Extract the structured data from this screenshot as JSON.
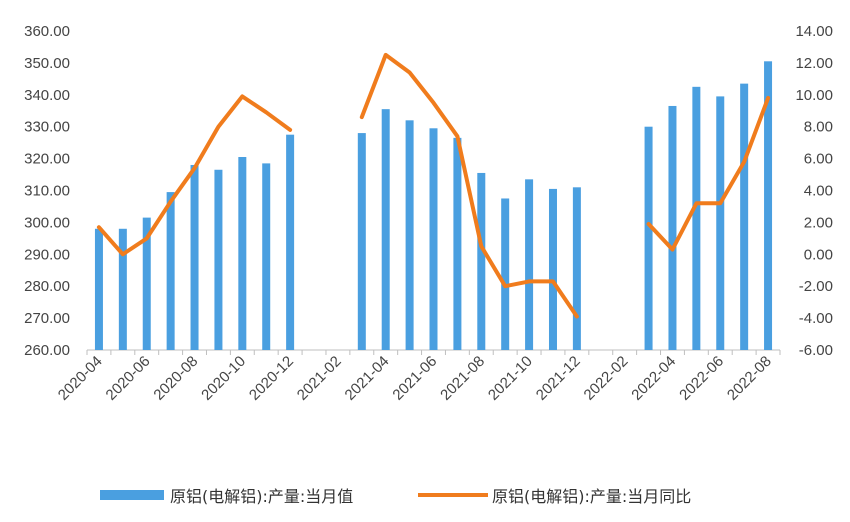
{
  "chart_data": {
    "type": "bar+line",
    "x": [
      "2020-04",
      "2020-05",
      "2020-06",
      "2020-07",
      "2020-08",
      "2020-09",
      "2020-10",
      "2020-11",
      "2020-12",
      "2021-01",
      "2021-02",
      "2021-03",
      "2021-04",
      "2021-05",
      "2021-06",
      "2021-07",
      "2021-08",
      "2021-09",
      "2021-10",
      "2021-11",
      "2021-12",
      "2022-01",
      "2022-02",
      "2022-03",
      "2022-04",
      "2022-05",
      "2022-06",
      "2022-07",
      "2022-08"
    ],
    "x_tick_labels": [
      "2020-04",
      "2020-06",
      "2020-08",
      "2020-10",
      "2020-12",
      "2021-02",
      "2021-04",
      "2021-06",
      "2021-08",
      "2021-10",
      "2021-12",
      "2022-02",
      "2022-04",
      "2022-06",
      "2022-08"
    ],
    "y_left": {
      "min": 260,
      "max": 360,
      "step": 10,
      "tick_labels": [
        "260.00",
        "270.00",
        "280.00",
        "290.00",
        "300.00",
        "310.00",
        "320.00",
        "330.00",
        "340.00",
        "350.00",
        "360.00"
      ]
    },
    "y_right": {
      "min": -6,
      "max": 14,
      "step": 2,
      "tick_labels": [
        "-6.00",
        "-4.00",
        "-2.00",
        "0.00",
        "2.00",
        "4.00",
        "6.00",
        "8.00",
        "10.00",
        "12.00",
        "14.00"
      ]
    },
    "series": [
      {
        "name": "原铝(电解铝):产量:当月值",
        "type": "bar",
        "axis": "left",
        "color": "#4a9fe0",
        "values": [
          298.0,
          298.0,
          301.5,
          309.5,
          318.0,
          316.5,
          320.5,
          318.5,
          327.5,
          null,
          null,
          328.0,
          335.5,
          332.0,
          329.5,
          326.5,
          315.5,
          307.5,
          313.5,
          310.5,
          311.0,
          null,
          null,
          330.0,
          336.5,
          342.5,
          339.5,
          343.5,
          350.5
        ]
      },
      {
        "name": "原铝(电解铝):产量:当月同比",
        "type": "line",
        "axis": "right",
        "color": "#f07c1d",
        "values": [
          1.7,
          0.0,
          1.0,
          3.3,
          5.4,
          8.0,
          9.9,
          8.9,
          7.8,
          null,
          null,
          8.6,
          12.5,
          11.4,
          9.5,
          7.4,
          0.5,
          -2.0,
          -1.7,
          -1.7,
          -3.9,
          null,
          null,
          1.9,
          0.3,
          3.2,
          3.2,
          5.8,
          9.8
        ]
      }
    ],
    "grid": false,
    "legend": "bottom"
  }
}
